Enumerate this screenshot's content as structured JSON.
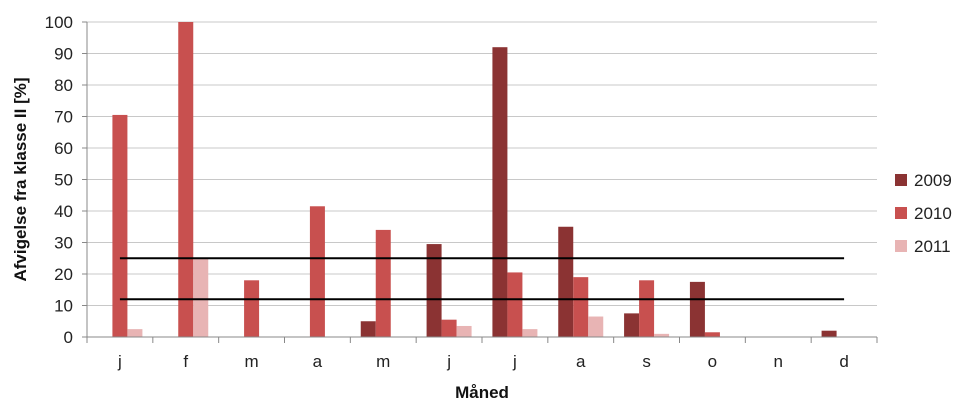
{
  "chart_data": {
    "type": "bar",
    "title": "",
    "xlabel": "Måned",
    "ylabel": "Afvigelse fra klasse II [%]",
    "ylim": [
      0,
      100
    ],
    "yticks": [
      0,
      10,
      20,
      30,
      40,
      50,
      60,
      70,
      80,
      90,
      100
    ],
    "grid": "horizontal",
    "legend_position": "right",
    "categories": [
      "j",
      "f",
      "m",
      "a",
      "m",
      "j",
      "j",
      "a",
      "s",
      "o",
      "n",
      "d"
    ],
    "series": [
      {
        "name": "2009",
        "color": "#8b3333",
        "values": [
          0,
          0,
          0,
          0,
          5,
          29.5,
          92,
          35,
          7.5,
          17.5,
          0,
          2
        ]
      },
      {
        "name": "2010",
        "color": "#c8504f",
        "values": [
          70.5,
          100,
          18,
          41.5,
          34,
          5.5,
          20.5,
          19,
          18,
          1.5,
          0,
          0
        ]
      },
      {
        "name": "2011",
        "color": "#e8b4b4",
        "values": [
          2.5,
          25,
          0,
          0,
          0,
          3.5,
          2.5,
          6.5,
          1,
          0,
          0,
          0
        ]
      }
    ],
    "reference_lines": [
      {
        "y": 25,
        "color": "#000000"
      },
      {
        "y": 12,
        "color": "#000000"
      }
    ]
  }
}
